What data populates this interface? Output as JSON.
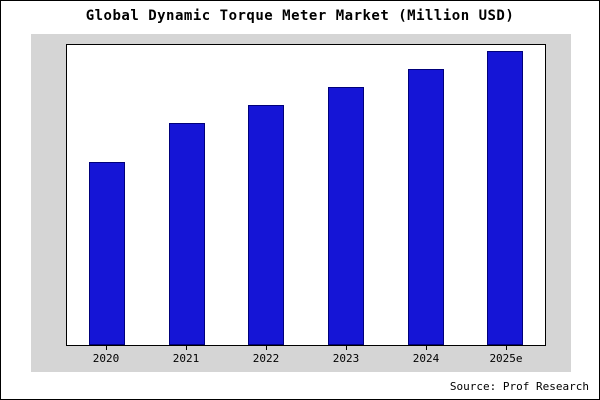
{
  "title": "Global Dynamic Torque Meter Market (Million USD)",
  "source": "Source: Prof Research",
  "colors": {
    "bar_fill": "#1515d6",
    "bar_border": "#00007a",
    "chart_background": "#d5d5d5",
    "plot_background": "#ffffff",
    "frame_border": "#000000"
  },
  "chart_data": {
    "type": "bar",
    "title": "Global Dynamic Torque Meter Market (Million USD)",
    "categories": [
      "2020",
      "2021",
      "2022",
      "2023",
      "2024",
      "2025e"
    ],
    "values": [
      61,
      74,
      80,
      86,
      92,
      98
    ],
    "values_note": "relative bar heights (percent of plot height); no y-axis scale shown in chart",
    "xlabel": "",
    "ylabel": "",
    "ylim": [
      0,
      100
    ],
    "grid": false,
    "legend": false,
    "source": "Source: Prof Research"
  }
}
